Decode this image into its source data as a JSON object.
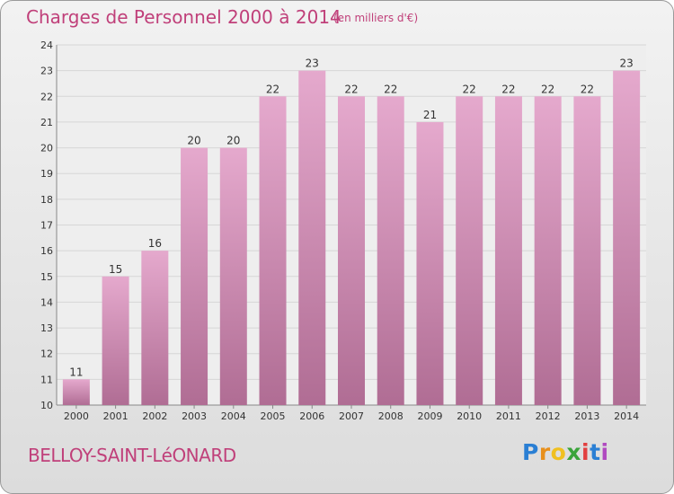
{
  "header": {
    "title": "Charges de Personnel 2000 à 2014",
    "subtitle": "(en milliers d'€)"
  },
  "footer": {
    "commune": "BELLOY-SAINT-LéONARD",
    "logo_letters": [
      "P",
      "r",
      "o",
      "x",
      "i",
      "t",
      "i"
    ]
  },
  "colors": {
    "bar_top": "#e5a9cd",
    "bar_bottom": "#b06d94",
    "title": "#c0407a",
    "grid": "#d6d6d6",
    "axis_text": "#333333"
  },
  "chart_data": {
    "type": "bar",
    "categories": [
      "2000",
      "2001",
      "2002",
      "2003",
      "2004",
      "2005",
      "2006",
      "2007",
      "2008",
      "2009",
      "2010",
      "2011",
      "2012",
      "2013",
      "2014"
    ],
    "values": [
      11,
      15,
      16,
      20,
      20,
      22,
      23,
      22,
      22,
      21,
      22,
      22,
      22,
      22,
      23
    ],
    "title": "Charges de Personnel 2000 à 2014",
    "xlabel": "",
    "ylabel": "",
    "ylim": [
      10,
      24
    ],
    "yticks": [
      10,
      11,
      12,
      13,
      14,
      15,
      16,
      17,
      18,
      19,
      20,
      21,
      22,
      23,
      24
    ],
    "grid": true,
    "data_labels": true
  }
}
